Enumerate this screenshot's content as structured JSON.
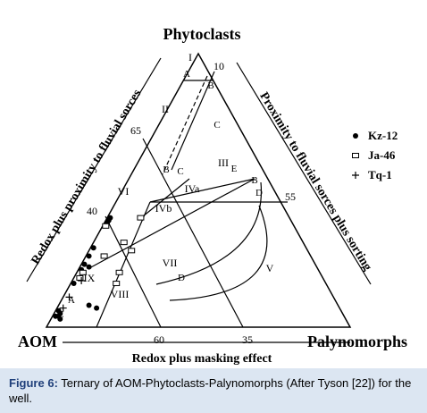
{
  "chart_data": {
    "type": "ternary",
    "vertex_labels": {
      "top": "Phytoclasts",
      "left": "AOM",
      "right": "Palynomorphs"
    },
    "side_labels": {
      "left": "Redox plus proximity to fluvial sorces",
      "right": "Proximity to fluvial sorces plus sorting",
      "bottom": "Redox plus masking effect"
    },
    "annotations": [
      "I",
      "II",
      "III",
      "IVa",
      "IVb",
      "V",
      "VI",
      "VII",
      "VIII",
      "IX",
      "A",
      "B",
      "C",
      "B",
      "C",
      "E",
      "B",
      "D",
      "D",
      "A",
      "E",
      "10",
      "65",
      "40",
      "55",
      "60",
      "35"
    ],
    "series": [
      {
        "name": "Kz-12",
        "marker": "dot",
        "color": "#000000",
        "phytoclasts": [
          40,
          39,
          38,
          29,
          26,
          23,
          22,
          21,
          16,
          8,
          7,
          6,
          5,
          4,
          4,
          3
        ],
        "palynomorphs": [
          1,
          1,
          1,
          1,
          1,
          1,
          3,
          1,
          1,
          10,
          13,
          1,
          2,
          1,
          2,
          3
        ]
      },
      {
        "name": "Ja-46",
        "marker": "square",
        "color": "#000000",
        "phytoclasts": [
          37,
          40,
          31,
          28,
          26,
          20,
          16,
          20,
          18
        ],
        "palynomorphs": [
          1,
          11,
          10,
          14,
          6,
          14,
          15,
          2,
          2
        ]
      },
      {
        "name": "Tq-1",
        "marker": "plus",
        "color": "#000000",
        "phytoclasts": [
          17,
          11,
          7
        ],
        "palynomorphs": [
          3,
          2,
          2
        ]
      }
    ]
  },
  "caption": {
    "label": "Figure 6:",
    "text": " Ternary of AOM-Phytoclasts-Palynomorphs (After Tyson [22]) for the well."
  }
}
